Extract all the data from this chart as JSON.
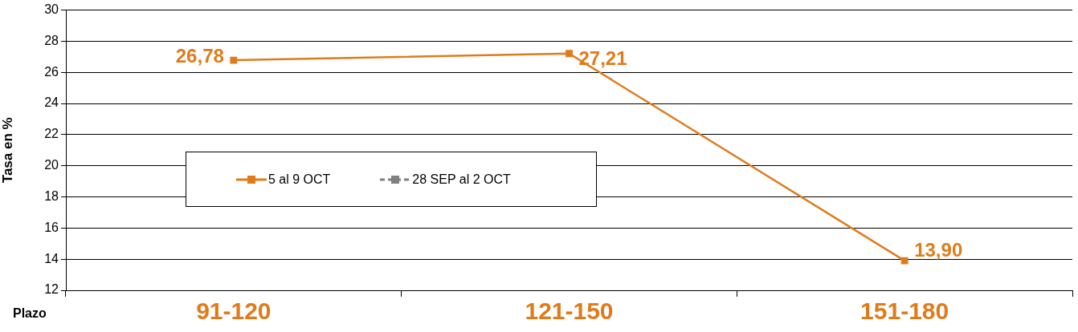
{
  "chart_data": {
    "type": "line",
    "xlabel": "Plazo",
    "ylabel": "Tasa en %",
    "categories": [
      "91-120",
      "121-150",
      "151-180"
    ],
    "series": [
      {
        "name": "5 al 9 OCT",
        "color": "#e07b1a",
        "values": [
          26.78,
          27.21,
          13.9
        ],
        "value_labels": [
          "26,78",
          "27,21",
          "13,90"
        ],
        "line_style": "solid"
      },
      {
        "name": "28 SEP al 2 OCT",
        "color": "#808080",
        "values": [
          null,
          null,
          null
        ],
        "line_style": "dashed"
      }
    ],
    "ylim": [
      12,
      30
    ],
    "yticks": [
      12,
      14,
      16,
      18,
      20,
      22,
      24,
      26,
      28,
      30
    ],
    "grid": "y",
    "legend": "left",
    "marker": "square"
  }
}
